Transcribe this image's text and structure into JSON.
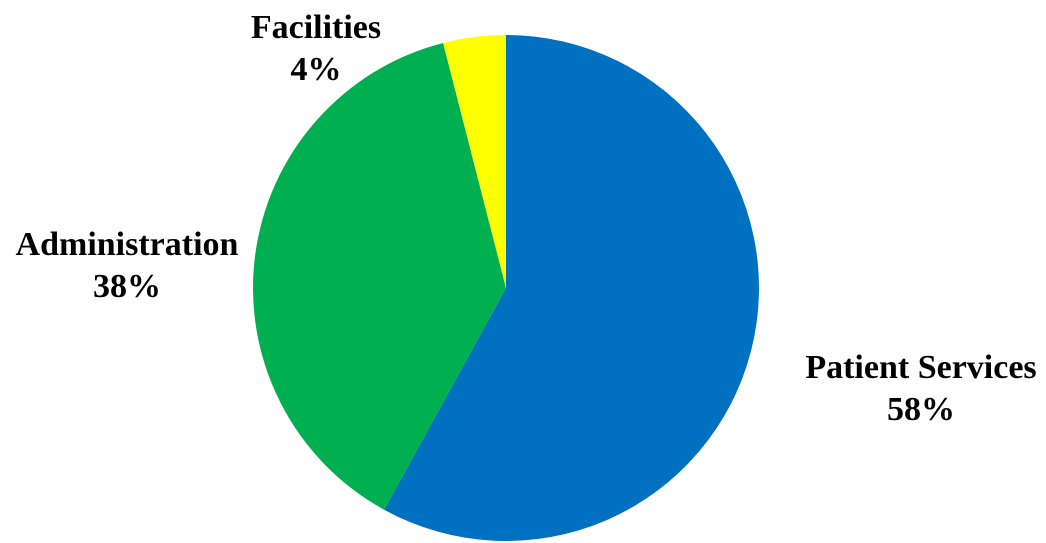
{
  "chart_data": {
    "type": "pie",
    "title": "",
    "start_angle_deg": 0,
    "direction": "clockwise",
    "slices": [
      {
        "label": "Patient Services",
        "value": 58,
        "value_label": "58%",
        "color": "#0070C0"
      },
      {
        "label": "Administration",
        "value": 38,
        "value_label": "38%",
        "color": "#00B050"
      },
      {
        "label": "Facilities",
        "value": 4,
        "value_label": "4%",
        "color": "#FFFF00"
      }
    ]
  }
}
